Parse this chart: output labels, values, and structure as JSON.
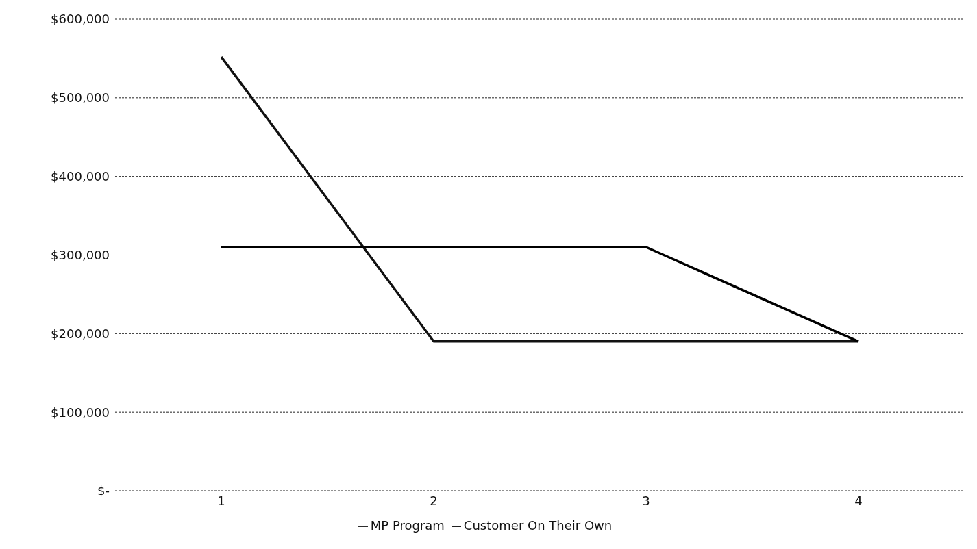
{
  "chart_data": {
    "type": "line",
    "categories": [
      "1",
      "2",
      "3",
      "4"
    ],
    "series": [
      {
        "name": "MP Program",
        "color": "#111111",
        "values": [
          552000,
          190000,
          190000,
          190000
        ]
      },
      {
        "name": "Customer On Their Own",
        "color": "#000000",
        "values": [
          310000,
          310000,
          310000,
          190000
        ]
      }
    ],
    "ylim": [
      0,
      600000
    ],
    "yticks": [
      {
        "value": 0,
        "label": "$-"
      },
      {
        "value": 100000,
        "label": "$100,000"
      },
      {
        "value": 200000,
        "label": "$200,000"
      },
      {
        "value": 300000,
        "label": "$300,000"
      },
      {
        "value": 400000,
        "label": "$400,000"
      },
      {
        "value": 500000,
        "label": "$500,000"
      },
      {
        "value": 600000,
        "label": "$600,000"
      }
    ],
    "grid": "y",
    "legend": "bottom",
    "marker": "none",
    "line_style": "solid"
  }
}
